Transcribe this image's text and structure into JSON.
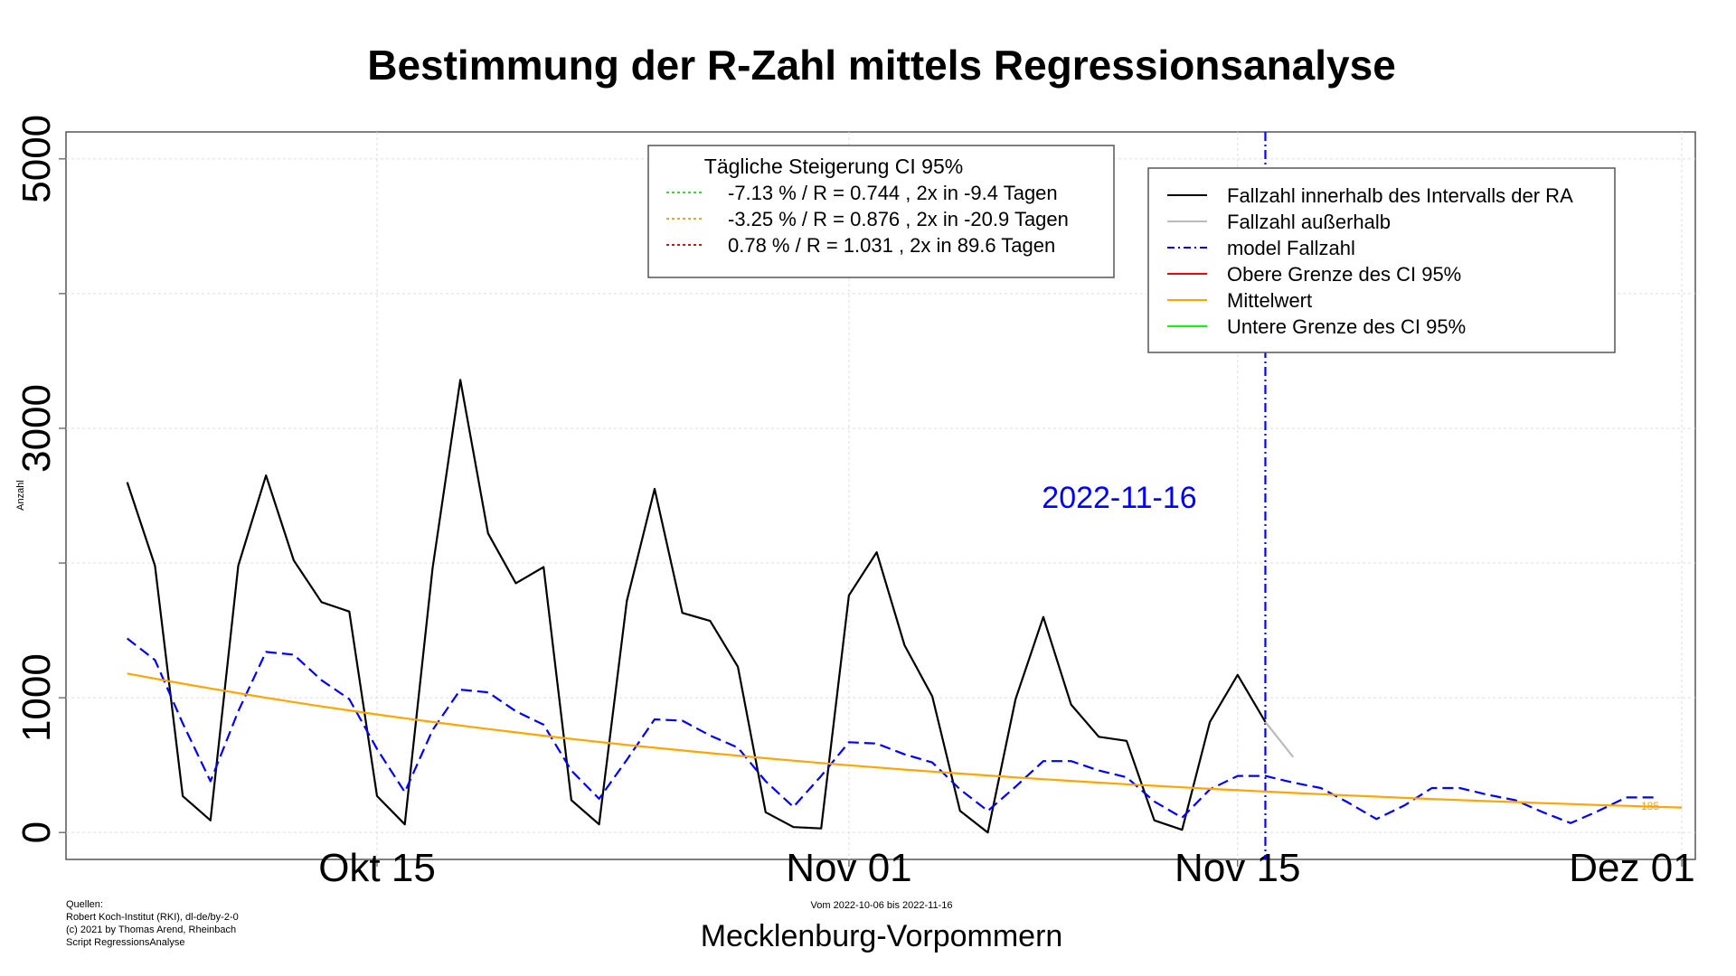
{
  "chart_data": {
    "type": "line",
    "title": "Bestimmung der R-Zahl mittels Regressionsanalyse",
    "subtitle": "Vom 2022-10-06 bis 2022-11-16",
    "xlabel": "Mecklenburg-Vorpommern",
    "ylabel": "Anzahl",
    "x_start_date": "2022-10-06",
    "xlim": [
      "2022-10-05",
      "2022-12-01"
    ],
    "ylim": [
      -200,
      5200
    ],
    "y_ticks": [
      0,
      1000,
      3000,
      5000
    ],
    "y_minor_ticks": [
      2000,
      4000
    ],
    "x_ticks": [
      {
        "date": "2022-10-15",
        "label": "Okt 15"
      },
      {
        "date": "2022-11-01",
        "label": "Nov 01"
      },
      {
        "date": "2022-11-15",
        "label": "Nov 15"
      },
      {
        "date": "2022-12-01",
        "label": "Dez 01"
      }
    ],
    "grid": true,
    "marker_date": "2022-11-16",
    "marker_label": "2022-11-16",
    "end_value_label": "185",
    "series": [
      {
        "name": "Fallzahl innerhalb des Intervalls der RA",
        "color": "#000000",
        "style": "solid",
        "start_date": "2022-10-06",
        "values": [
          2600,
          1980,
          270,
          90,
          1980,
          2650,
          2020,
          1710,
          1640,
          270,
          60,
          1960,
          3360,
          2220,
          1850,
          1970,
          240,
          60,
          1720,
          2550,
          1630,
          1570,
          1230,
          150,
          40,
          30,
          1760,
          2080,
          1390,
          1010,
          160,
          0,
          990,
          1600,
          950,
          710,
          680,
          90,
          20,
          820,
          1170,
          820
        ]
      },
      {
        "name": "Fallzahl außerhalb",
        "color": "#bbbbbb",
        "style": "solid",
        "start_date": "2022-11-16",
        "values": [
          820,
          560
        ]
      },
      {
        "name": "model Fallzahl",
        "color": "#0000ff",
        "style": "dashed",
        "start_date": "2022-10-06",
        "values": [
          1440,
          1280,
          810,
          380,
          900,
          1340,
          1320,
          1130,
          990,
          620,
          300,
          760,
          1060,
          1040,
          900,
          800,
          460,
          250,
          540,
          840,
          830,
          720,
          630,
          380,
          190,
          420,
          670,
          660,
          580,
          520,
          320,
          160,
          340,
          530,
          530,
          460,
          410,
          230,
          110,
          320,
          420,
          420,
          370,
          330,
          220,
          100,
          200,
          330,
          330,
          280,
          240,
          150,
          70,
          160,
          260,
          260
        ]
      },
      {
        "name": "Obere Grenze des CI 95%",
        "color": "#ff0000",
        "style": "solid",
        "values": []
      },
      {
        "name": "Mittelwert",
        "color": "#ffa500",
        "style": "solid",
        "start_date": "2022-10-06",
        "values": [
          1180,
          1142,
          1105,
          1069,
          1034,
          1000,
          968,
          936,
          906,
          876,
          848,
          820,
          794,
          768,
          743,
          718,
          695,
          672,
          650,
          629,
          609,
          589,
          570,
          551,
          533,
          516,
          499,
          483,
          467,
          452,
          437,
          423,
          409,
          396,
          383,
          370,
          358,
          347,
          335,
          324,
          314,
          304,
          294,
          284,
          275,
          266,
          257,
          249,
          241,
          233,
          226,
          218,
          211,
          204,
          198,
          191,
          185
        ]
      },
      {
        "name": "Untere Grenze des CI 95%",
        "color": "#00ff00",
        "style": "solid",
        "values": []
      }
    ]
  },
  "ci_legend": {
    "title": "Tägliche Steigerung CI  95%",
    "items": [
      {
        "text": "-7.13 % / R = 0.744 , 2x in -9.4 Tagen",
        "color": "#00ff00"
      },
      {
        "text": "-3.25 % / R = 0.876 , 2x in -20.9 Tagen",
        "color": "#ffa500"
      },
      {
        "text": "0.78 % / R = 1.031 , 2x in 89.6 Tagen",
        "color": "#ff0000"
      }
    ]
  },
  "series_legend": {
    "items": [
      {
        "text": "Fallzahl innerhalb des Intervalls der RA",
        "color": "#000000",
        "dash": ""
      },
      {
        "text": "Fallzahl außerhalb",
        "color": "#bbbbbb",
        "dash": ""
      },
      {
        "text": "model Fallzahl",
        "color": "#0000ff",
        "dash": "8,4,2,4"
      },
      {
        "text": "Obere Grenze des CI 95%",
        "color": "#ff0000",
        "dash": ""
      },
      {
        "text": "Mittelwert",
        "color": "#ffa500",
        "dash": ""
      },
      {
        "text": "Untere Grenze des CI 95%",
        "color": "#00ff00",
        "dash": ""
      }
    ]
  },
  "sources": {
    "lines": [
      "Quellen:",
      "Robert Koch-Institut (RKI), dl-de/by-2-0",
      "(c) 2021 by Thomas Arend, Rheinbach",
      "Script RegressionsAnalyse"
    ]
  }
}
